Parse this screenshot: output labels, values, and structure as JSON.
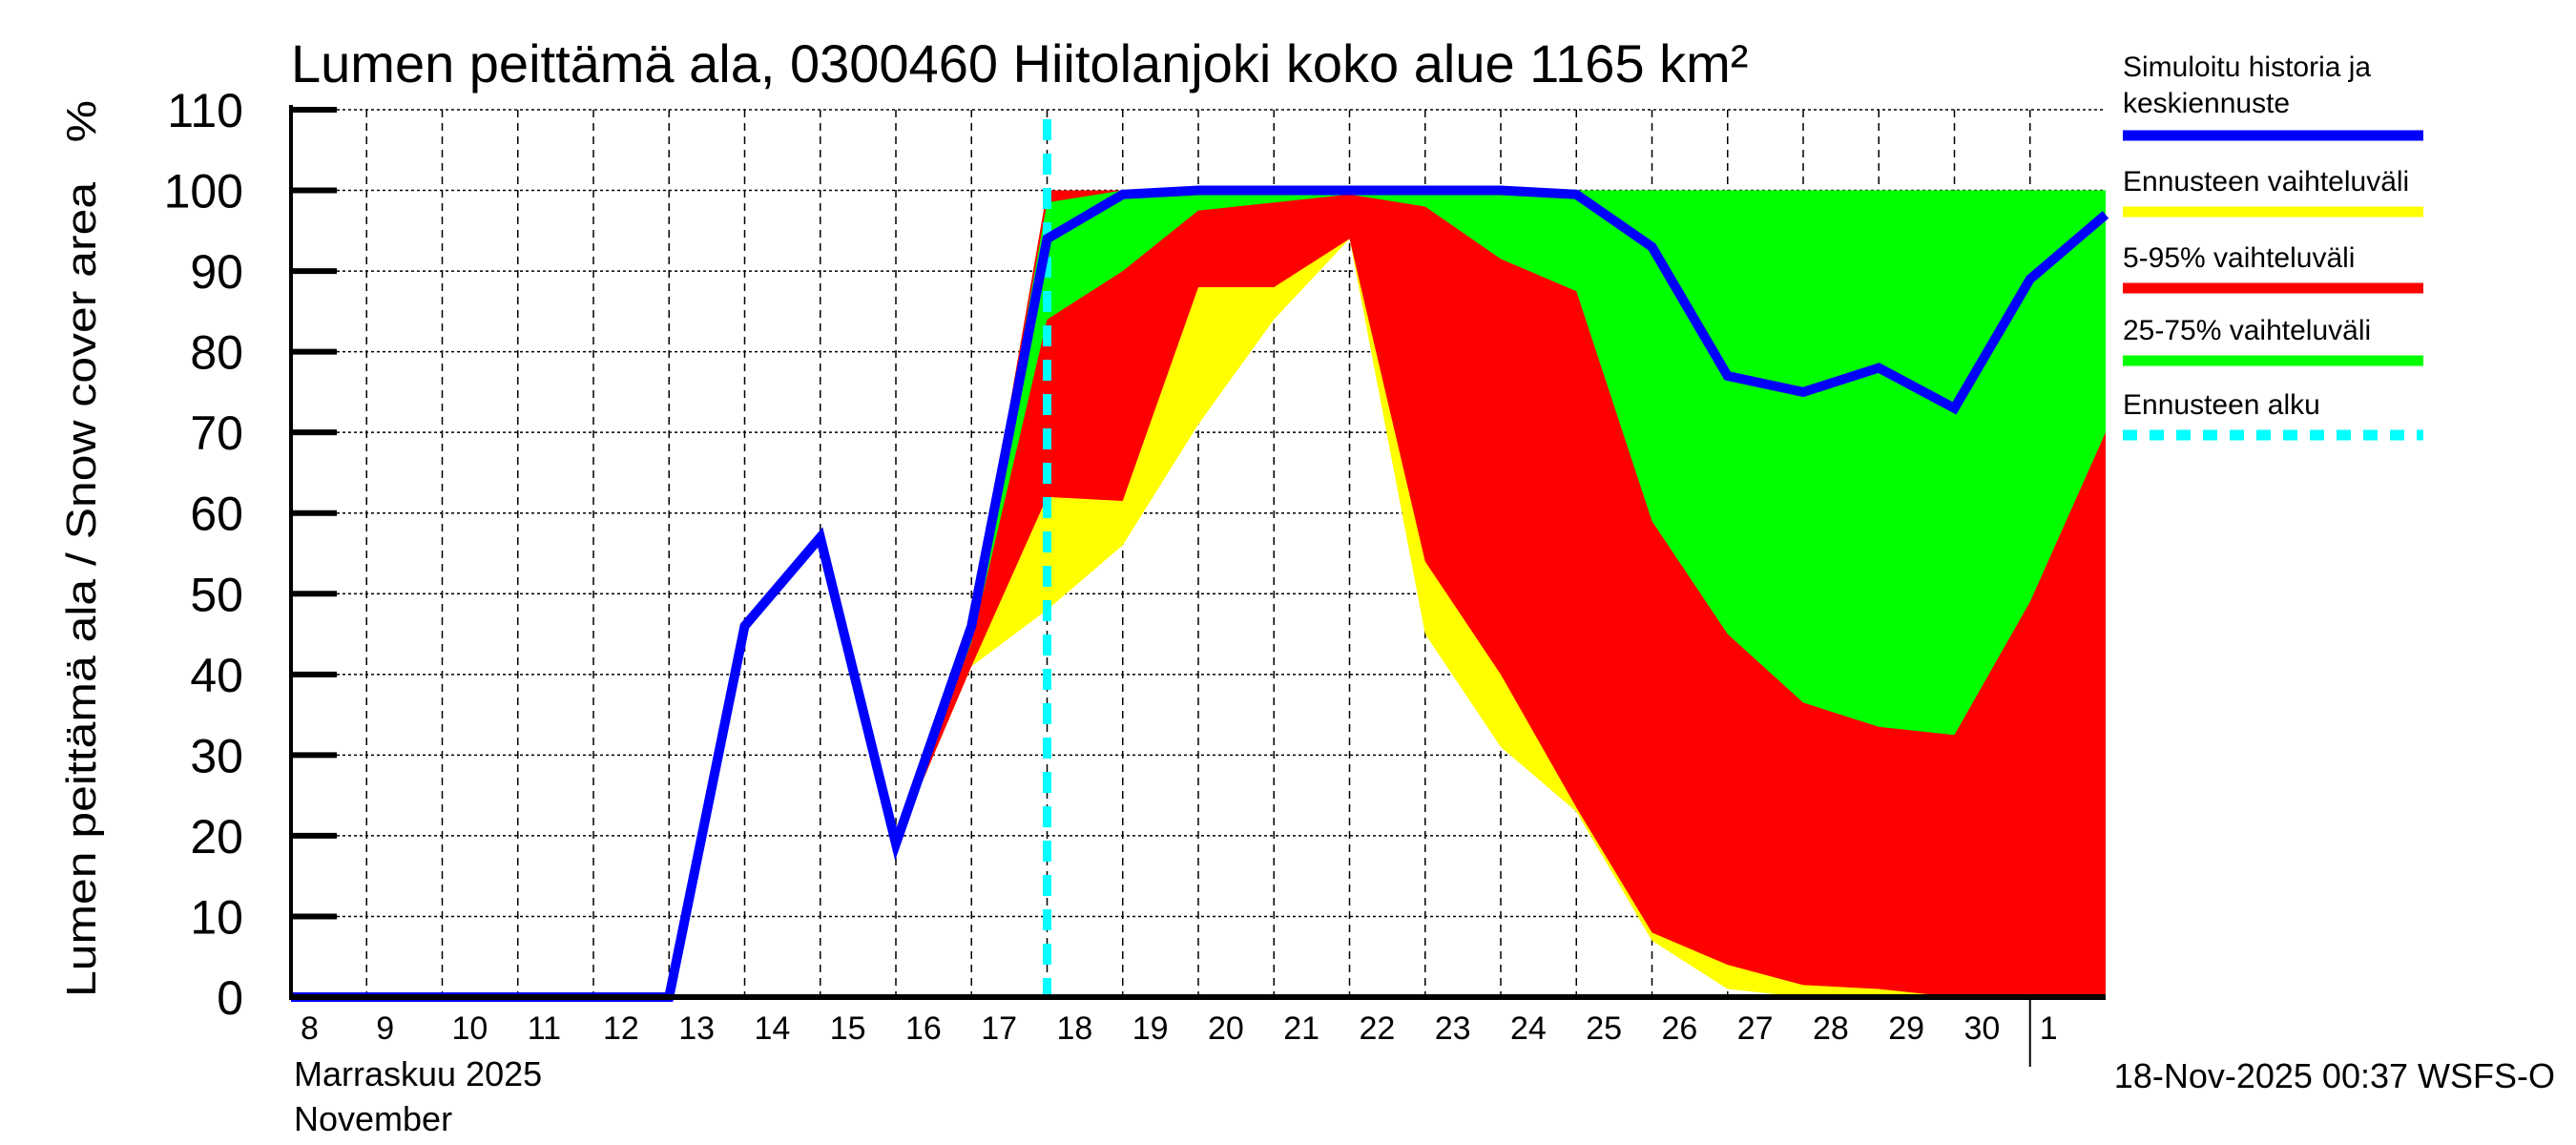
{
  "chart_data": {
    "type": "area",
    "title": "Lumen peittämä ala, 0300460 Hiitolanjoki koko alue 1165 km²",
    "ylabel": "Lumen peittämä ala / Snow cover area   %",
    "xlabel_line1": "Marraskuu 2025",
    "xlabel_line2": "November",
    "timestamp": "18-Nov-2025 00:37 WSFS-O",
    "ylim": [
      0,
      110
    ],
    "yticks": [
      0,
      10,
      20,
      30,
      40,
      50,
      60,
      70,
      80,
      90,
      100,
      110
    ],
    "xlim": [
      "2025-11-08",
      "2025-12-02"
    ],
    "xtick_labels": [
      "8",
      "9",
      "10",
      "11",
      "12",
      "13",
      "14",
      "15",
      "16",
      "17",
      "18",
      "19",
      "20",
      "21",
      "22",
      "23",
      "24",
      "25",
      "26",
      "27",
      "28",
      "29",
      "30",
      "1"
    ],
    "grid": true,
    "legend_placement": "right",
    "forecast_start": "2025-11-18",
    "band_dates": [
      "2025-11-16",
      "2025-11-17",
      "2025-11-18",
      "2025-11-19",
      "2025-11-20",
      "2025-11-21",
      "2025-11-22",
      "2025-11-23",
      "2025-11-24",
      "2025-11-25",
      "2025-11-26",
      "2025-11-27",
      "2025-11-28",
      "2025-11-29",
      "2025-11-30",
      "2025-12-01",
      "2025-12-02"
    ],
    "bands": [
      {
        "name": "Ennusteen vaihteluväli",
        "color": "#ffff00",
        "low": [
          19,
          41,
          48,
          56,
          71,
          84,
          94,
          45,
          31,
          23,
          7,
          1,
          0,
          0,
          0,
          0,
          0
        ],
        "high": [
          19,
          46,
          100,
          100,
          100,
          100,
          100,
          100,
          100,
          100,
          100,
          100,
          100,
          100,
          100,
          100,
          100
        ]
      },
      {
        "name": "5-95% vaihteluväli",
        "color": "#ff0000",
        "low": [
          19,
          41,
          62,
          61.5,
          88,
          88,
          94,
          54,
          40,
          23.5,
          8,
          4,
          1.5,
          1,
          0,
          0,
          0
        ],
        "high": [
          19,
          46,
          100,
          100,
          100,
          100,
          100,
          100,
          100,
          100,
          100,
          99.8,
          99.8,
          100,
          100,
          100,
          100
        ]
      },
      {
        "name": "25-75% vaihteluväli",
        "color": "#00ff00",
        "low": [
          19,
          44,
          84,
          90,
          97.5,
          98.5,
          99.5,
          98,
          91.5,
          87.5,
          59,
          45,
          36.5,
          33.5,
          32.5,
          49,
          70
        ],
        "high": [
          19,
          46,
          98.5,
          100,
          100,
          100,
          100,
          100,
          100,
          100,
          100,
          100,
          100,
          100,
          100,
          100,
          100
        ]
      }
    ],
    "series": [
      {
        "name": "Simuloitu historia ja keskiennuste",
        "color": "#0000ff",
        "x": [
          "2025-11-08",
          "2025-11-09",
          "2025-11-10",
          "2025-11-11",
          "2025-11-12",
          "2025-11-13",
          "2025-11-14",
          "2025-11-15",
          "2025-11-16",
          "2025-11-17",
          "2025-11-18",
          "2025-11-19",
          "2025-11-20",
          "2025-11-21",
          "2025-11-22",
          "2025-11-23",
          "2025-11-24",
          "2025-11-25",
          "2025-11-26",
          "2025-11-27",
          "2025-11-28",
          "2025-11-29",
          "2025-11-30",
          "2025-12-01",
          "2025-12-02"
        ],
        "values": [
          0,
          0,
          0,
          0,
          0,
          0,
          46,
          57,
          19,
          46,
          94,
          99.5,
          100,
          100,
          100,
          100,
          100,
          99.5,
          93,
          77,
          75,
          78,
          73,
          89,
          97
        ]
      }
    ],
    "legend": [
      {
        "label_line1": "Simuloitu historia ja",
        "label_line2": "keskiennuste",
        "color": "#0000ff",
        "style": "solid"
      },
      {
        "label_line1": "Ennusteen vaihteluväli",
        "color": "#ffff00",
        "style": "solid"
      },
      {
        "label_line1": "5-95% vaihteluväli",
        "color": "#ff0000",
        "style": "solid"
      },
      {
        "label_line1": "25-75% vaihteluväli",
        "color": "#00ff00",
        "style": "solid"
      },
      {
        "label_line1": "Ennusteen alku",
        "color": "#00ffff",
        "style": "dashed"
      }
    ]
  }
}
